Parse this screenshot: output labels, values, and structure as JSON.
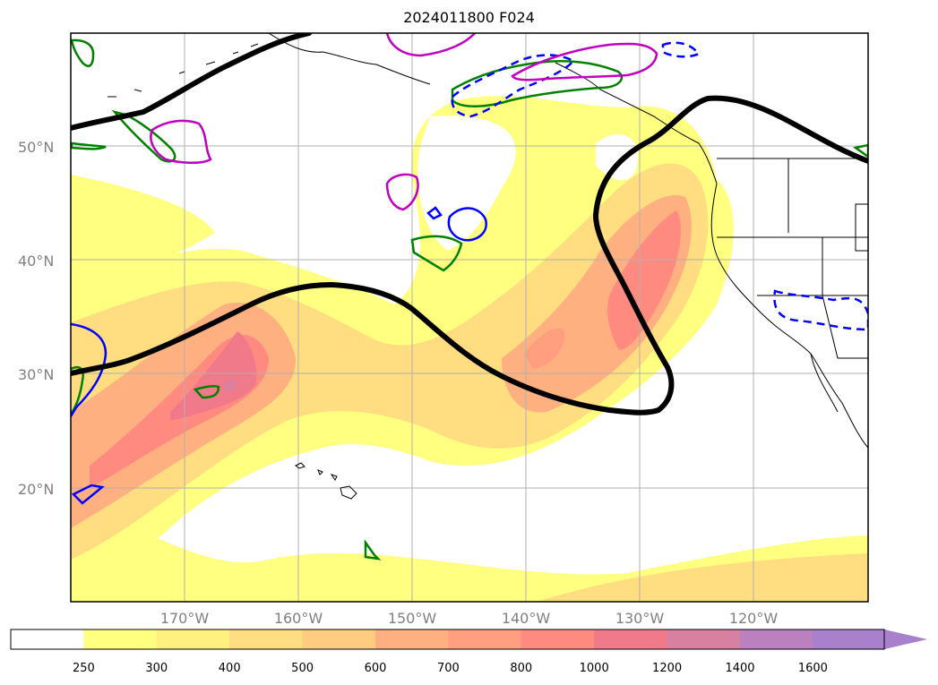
{
  "title": "2024011800 F024",
  "lat_labels": [
    "50°N",
    "40°N",
    "30°N",
    "20°N"
  ],
  "lon_labels": [
    "170°W",
    "160°W",
    "150°W",
    "140°W",
    "130°W",
    "120°W"
  ],
  "colorbar": {
    "ticks": [
      "250",
      "300",
      "400",
      "500",
      "600",
      "700",
      "800",
      "1000",
      "1200",
      "1400",
      "1600"
    ],
    "colors": [
      "#ffffff",
      "#ffff80",
      "#fff080",
      "#ffdd80",
      "#ffcc80",
      "#ffb080",
      "#ff9f80",
      "#ff8a80",
      "#f07a8a",
      "#d880a0",
      "#bb80c0",
      "#a880cc"
    ]
  },
  "colors": {
    "jet_stream": "#000000",
    "contour_green": "#008000",
    "contour_blue": "#0000ff",
    "contour_magenta": "#c000c0"
  }
}
